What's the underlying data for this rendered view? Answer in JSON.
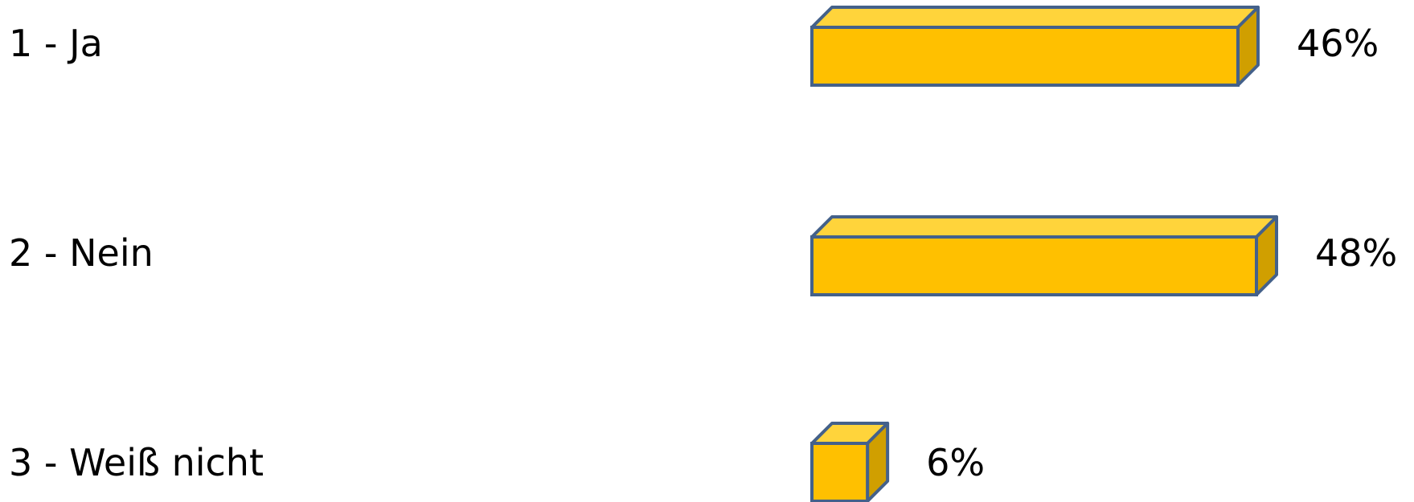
{
  "chart_data": {
    "type": "bar",
    "orientation": "horizontal",
    "style": "3d",
    "categories": [
      "1 - Ja",
      "2 - Nein",
      "3 - Weiß nicht"
    ],
    "values": [
      46,
      48,
      6
    ],
    "value_labels": [
      "46%",
      "48%",
      "6%"
    ],
    "unit": "%",
    "xlim": [
      0,
      48
    ],
    "grid": false,
    "legend": "none",
    "colors": {
      "bar_front": "#FFC000",
      "bar_top": "#FFD43B",
      "bar_side": "#D09F00",
      "bar_outline": "#44618A"
    }
  }
}
